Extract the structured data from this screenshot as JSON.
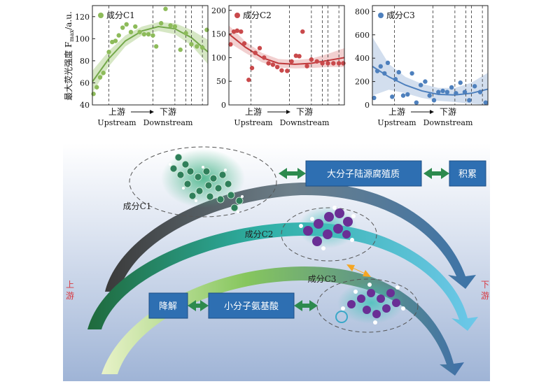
{
  "y_axis_label": "最大荧光强度 F",
  "y_axis_sub": "max",
  "y_axis_unit": "/a.u.",
  "x_caption": {
    "up_cn": "上游",
    "down_cn": "下游",
    "up_en": "Upstream",
    "down_en": "Downstream"
  },
  "chart_data": [
    {
      "type": "scatter",
      "title": "",
      "legend": "成分C1",
      "color": "#8dbb5a",
      "band_color": "#c8dfb0",
      "line_color": "#74a84a",
      "ylim": [
        40,
        130
      ],
      "yticks": [
        40,
        60,
        80,
        100,
        120
      ],
      "xlim": [
        0,
        21
      ],
      "vlines_solid": [
        3
      ],
      "vlines_dashed": [
        11,
        15,
        17,
        18,
        20
      ],
      "points": [
        {
          "x": 0.2,
          "y": 50
        },
        {
          "x": 0.8,
          "y": 56
        },
        {
          "x": 1.4,
          "y": 65
        },
        {
          "x": 2.0,
          "y": 69
        },
        {
          "x": 3.0,
          "y": 88
        },
        {
          "x": 3.6,
          "y": 97
        },
        {
          "x": 4.2,
          "y": 98
        },
        {
          "x": 4.8,
          "y": 103
        },
        {
          "x": 5.5,
          "y": 110
        },
        {
          "x": 6.2,
          "y": 113
        },
        {
          "x": 7.0,
          "y": 106
        },
        {
          "x": 7.8,
          "y": 111
        },
        {
          "x": 8.6,
          "y": 106
        },
        {
          "x": 9.4,
          "y": 104
        },
        {
          "x": 10.2,
          "y": 104
        },
        {
          "x": 11.0,
          "y": 103
        },
        {
          "x": 11.6,
          "y": 93
        },
        {
          "x": 12.5,
          "y": 114
        },
        {
          "x": 13.3,
          "y": 127
        },
        {
          "x": 14.2,
          "y": 112
        },
        {
          "x": 15.0,
          "y": 111
        },
        {
          "x": 16.0,
          "y": 90
        },
        {
          "x": 17.0,
          "y": 105
        },
        {
          "x": 18.0,
          "y": 95
        },
        {
          "x": 19.0,
          "y": 93
        },
        {
          "x": 20.0,
          "y": 92
        },
        {
          "x": 20.8,
          "y": 108
        }
      ],
      "fit": {
        "x": [
          0,
          3,
          6,
          9,
          12,
          15,
          18,
          21
        ],
        "y": [
          61,
          82,
          98,
          107,
          111,
          109,
          101,
          88
        ]
      },
      "band_half_width": [
        10,
        7,
        5,
        4,
        4,
        5,
        7,
        11
      ]
    },
    {
      "type": "scatter",
      "title": "",
      "legend": "成分C2",
      "color": "#c9494b",
      "band_color": "#edc0c0",
      "line_color": "#c0393b",
      "ylim": [
        0,
        210
      ],
      "yticks": [
        0,
        50,
        100,
        150,
        200
      ],
      "xlim": [
        0,
        21
      ],
      "vlines_solid": [
        4
      ],
      "vlines_dashed": [
        11,
        15,
        17,
        18,
        20
      ],
      "points": [
        {
          "x": 0.3,
          "y": 128
        },
        {
          "x": 0.9,
          "y": 155
        },
        {
          "x": 1.5,
          "y": 157
        },
        {
          "x": 2.2,
          "y": 155
        },
        {
          "x": 2.8,
          "y": 130
        },
        {
          "x": 3.6,
          "y": 53
        },
        {
          "x": 4.2,
          "y": 78
        },
        {
          "x": 4.8,
          "y": 110
        },
        {
          "x": 5.6,
          "y": 120
        },
        {
          "x": 6.4,
          "y": 100
        },
        {
          "x": 7.2,
          "y": 88
        },
        {
          "x": 8.0,
          "y": 85
        },
        {
          "x": 8.8,
          "y": 80
        },
        {
          "x": 9.6,
          "y": 73
        },
        {
          "x": 10.6,
          "y": 72
        },
        {
          "x": 11.4,
          "y": 92
        },
        {
          "x": 12.2,
          "y": 104
        },
        {
          "x": 12.8,
          "y": 103
        },
        {
          "x": 13.4,
          "y": 155
        },
        {
          "x": 14.2,
          "y": 82
        },
        {
          "x": 15.0,
          "y": 96
        },
        {
          "x": 16.0,
          "y": 92
        },
        {
          "x": 17.0,
          "y": 88
        },
        {
          "x": 18.0,
          "y": 88
        },
        {
          "x": 19.0,
          "y": 88
        },
        {
          "x": 20.0,
          "y": 88
        },
        {
          "x": 20.8,
          "y": 88
        }
      ],
      "fit": {
        "x": [
          0,
          3,
          6,
          9,
          12,
          15,
          18,
          21
        ],
        "y": [
          150,
          122,
          100,
          88,
          86,
          88,
          94,
          100
        ]
      },
      "band_half_width": [
        18,
        12,
        10,
        9,
        9,
        10,
        14,
        20
      ]
    },
    {
      "type": "scatter",
      "title": "",
      "legend": "成分C3",
      "color": "#4e80bd",
      "band_color": "#c3d3e8",
      "line_color": "#4e80bd",
      "ylim": [
        0,
        850
      ],
      "yticks": [
        0,
        200,
        400,
        600,
        800
      ],
      "xlim": [
        0,
        21
      ],
      "vlines_solid": [
        4
      ],
      "vlines_dashed": [
        11,
        15,
        17,
        18,
        20
      ],
      "points": [
        {
          "x": 0.3,
          "y": 60
        },
        {
          "x": 0.9,
          "y": 290
        },
        {
          "x": 1.5,
          "y": 330
        },
        {
          "x": 2.2,
          "y": 270
        },
        {
          "x": 2.8,
          "y": 360
        },
        {
          "x": 3.6,
          "y": 70
        },
        {
          "x": 4.2,
          "y": 220
        },
        {
          "x": 4.8,
          "y": 280
        },
        {
          "x": 5.6,
          "y": 80
        },
        {
          "x": 6.4,
          "y": 90
        },
        {
          "x": 7.2,
          "y": 270
        },
        {
          "x": 8.0,
          "y": 20
        },
        {
          "x": 8.8,
          "y": 170
        },
        {
          "x": 9.6,
          "y": 200
        },
        {
          "x": 10.4,
          "y": 80
        },
        {
          "x": 11.2,
          "y": 40
        },
        {
          "x": 12.0,
          "y": 110
        },
        {
          "x": 12.8,
          "y": 120
        },
        {
          "x": 13.6,
          "y": 110
        },
        {
          "x": 14.4,
          "y": 150
        },
        {
          "x": 15.2,
          "y": 100
        },
        {
          "x": 16.0,
          "y": 190
        },
        {
          "x": 16.8,
          "y": 110
        },
        {
          "x": 17.6,
          "y": 40
        },
        {
          "x": 18.6,
          "y": 160
        },
        {
          "x": 19.6,
          "y": 110
        },
        {
          "x": 20.6,
          "y": 20
        }
      ],
      "fit": {
        "x": [
          0,
          3,
          6,
          9,
          12,
          15,
          18,
          21
        ],
        "y": [
          330,
          240,
          170,
          120,
          90,
          85,
          100,
          135
        ]
      },
      "band_half_width": [
        250,
        110,
        70,
        60,
        55,
        60,
        90,
        140
      ]
    }
  ],
  "diagram": {
    "box_macro": "大分子陆源腐殖质",
    "box_accumulate": "积累",
    "box_degrade": "降解",
    "box_amino": "小分子氨基酸",
    "label_c1": "成分C1",
    "label_c2": "成分C2",
    "label_c3": "成分C3",
    "upstream": "上游",
    "downstream": "下游",
    "colors": {
      "box": "#2e6fb2",
      "double_arrow": "#2d8a4e",
      "c2c3_arrow": "#f5a623",
      "side_text": "#d9363e"
    }
  }
}
